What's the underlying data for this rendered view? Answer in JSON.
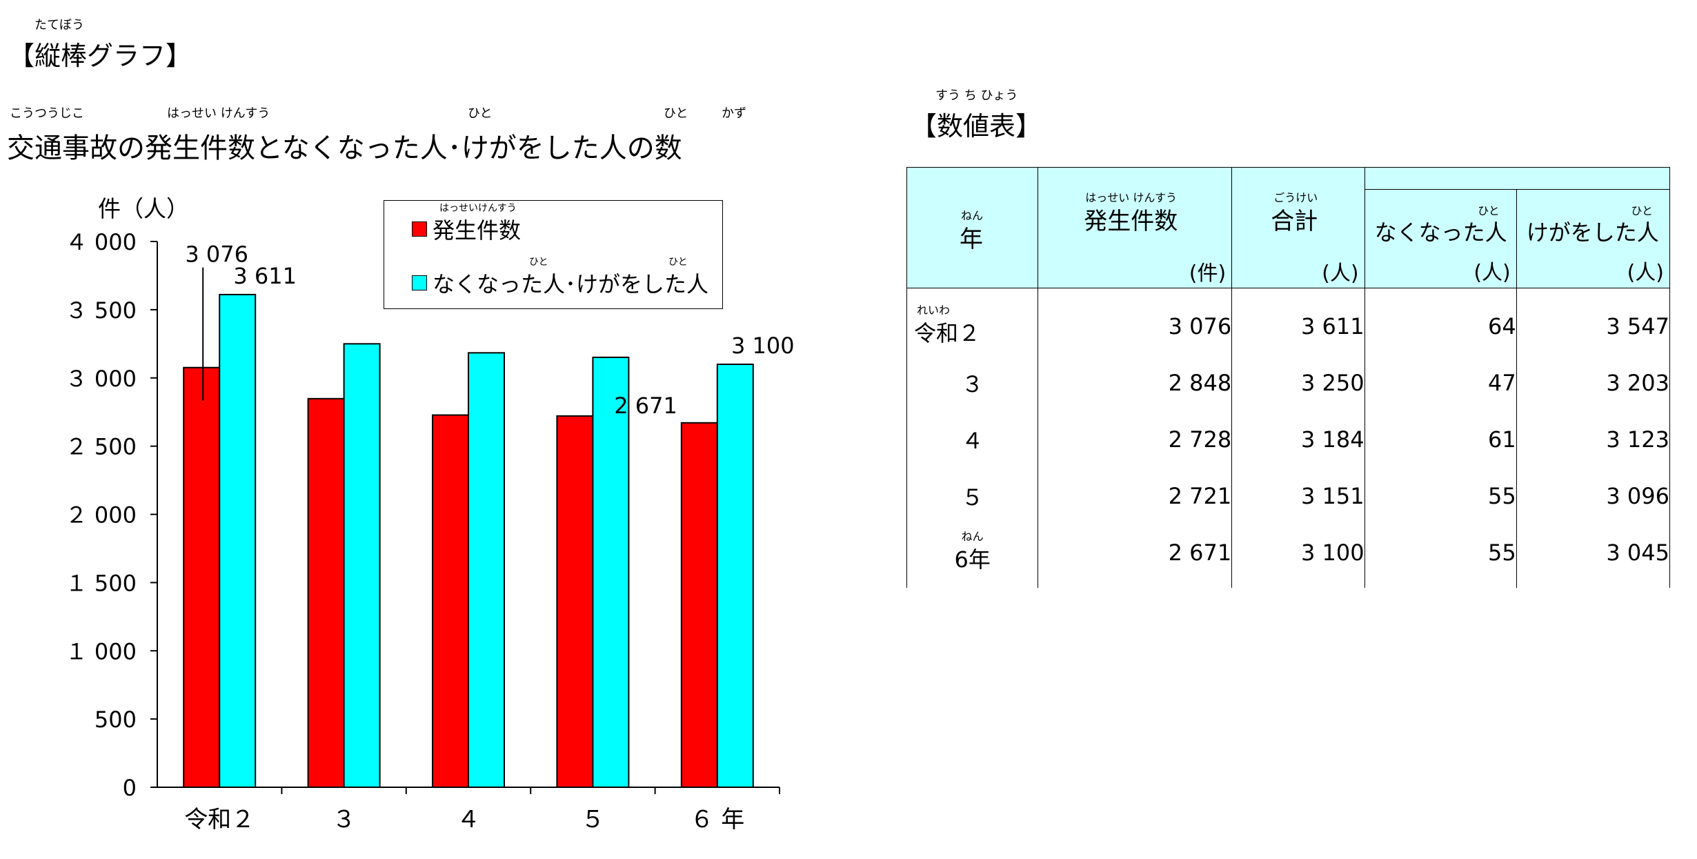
{
  "page": {
    "section_graph_ruby": "たてぼう",
    "section_graph_title": "【縦棒グラフ】",
    "chart_title_ruby_1": "こうつうじこ",
    "chart_title_ruby_2": "はっせい けんすう",
    "chart_title_ruby_3": "ひと",
    "chart_title_ruby_4": "ひと",
    "chart_title_ruby_5": "かず",
    "chart_title": "交通事故の発生件数となくなった人･けがをした人の数",
    "section_table_ruby": "すう ち ひょう",
    "section_table_title": "【数値表】"
  },
  "chart_data": {
    "type": "bar",
    "title": "交通事故の発生件数となくなった人･けがをした人の数",
    "ylabel": "件（人）",
    "categories": [
      "令和２",
      "３",
      "４",
      "５",
      "６ 年"
    ],
    "ylim": [
      0,
      4000
    ],
    "yticks": [
      0,
      500,
      1000,
      1500,
      2000,
      2500,
      3000,
      3500,
      4000
    ],
    "ytick_labels": [
      "0",
      "500",
      "１ 000",
      "１ 500",
      "２ 000",
      "２ 500",
      "３ 000",
      "３ 500",
      "４ 000"
    ],
    "series": [
      {
        "name": "発生件数",
        "name_ruby": "はっせいけんすう",
        "color": "#ff0000",
        "values": [
          3076,
          2848,
          2728,
          2721,
          2671
        ]
      },
      {
        "name": "なくなった人･けがをした人",
        "name_ruby_1": "ひと",
        "name_ruby_2": "ひと",
        "color": "#00ffff",
        "values": [
          3611,
          3250,
          3184,
          3151,
          3100
        ]
      }
    ],
    "data_labels": [
      {
        "series": 0,
        "index": 0,
        "text": "3 076"
      },
      {
        "series": 1,
        "index": 0,
        "text": "3 611"
      },
      {
        "series": 0,
        "index": 4,
        "text": "2 671"
      },
      {
        "series": 1,
        "index": 4,
        "text": "3 100"
      }
    ],
    "legend_position": "top-right",
    "grid": false
  },
  "table": {
    "header": {
      "year_ruby": "ねん",
      "year": "年",
      "incidents_ruby": "はっせい けんすう",
      "incidents": "発生件数",
      "incidents_unit": "(件)",
      "total_ruby": "ごうけい",
      "total": "合計",
      "total_unit": "(人)",
      "deaths_ruby": "ひと",
      "deaths": "なくなった人",
      "deaths_unit": "(人)",
      "injuries_ruby": "ひと",
      "injuries": "けがをした人",
      "injuries_unit": "(人)"
    },
    "rows": [
      {
        "year_ruby": "れいわ",
        "year": "令和２",
        "incidents": "3 076",
        "total": "3 611",
        "deaths": "64",
        "injuries": "3 547"
      },
      {
        "year_ruby": "",
        "year": "３",
        "incidents": "2 848",
        "total": "3 250",
        "deaths": "47",
        "injuries": "3 203"
      },
      {
        "year_ruby": "",
        "year": "４",
        "incidents": "2 728",
        "total": "3 184",
        "deaths": "61",
        "injuries": "3 123"
      },
      {
        "year_ruby": "",
        "year": "５",
        "incidents": "2 721",
        "total": "3 151",
        "deaths": "55",
        "injuries": "3 096"
      },
      {
        "year_ruby": "ねん",
        "year": "6年",
        "incidents": "2 671",
        "total": "3 100",
        "deaths": "55",
        "injuries": "3 045"
      }
    ]
  }
}
